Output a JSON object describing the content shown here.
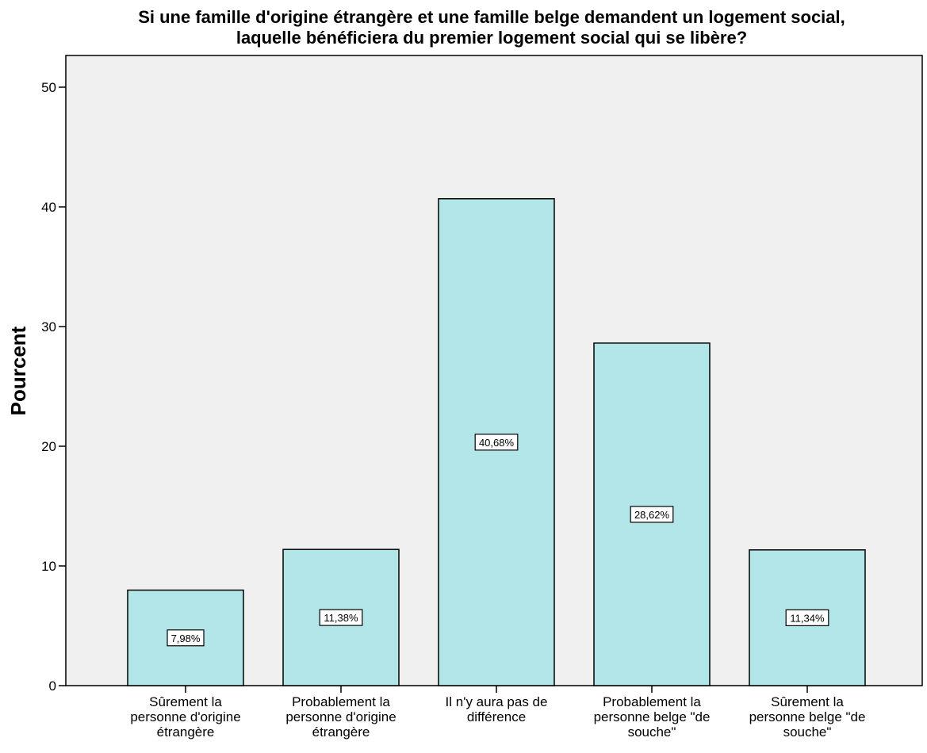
{
  "chart_data": {
    "type": "bar",
    "title": [
      "Si une famille d'origine étrangère et une famille belge demandent un logement social,",
      "laquelle bénéficiera du premier logement social qui se libère?"
    ],
    "ylabel": "Pourcent",
    "xlabel": "",
    "ylim": [
      0,
      52
    ],
    "yticks": [
      0,
      10,
      20,
      30,
      40,
      50
    ],
    "grid": false,
    "categories": [
      [
        "Sûrement la",
        "personne d'origine",
        "étrangère"
      ],
      [
        "Probablement la",
        "personne d'origine",
        "étrangère"
      ],
      [
        "Il n'y aura pas de",
        "différence"
      ],
      [
        "Probablement la",
        "personne belge \"de",
        "souche\""
      ],
      [
        "Sûrement la",
        "personne belge \"de",
        "souche\""
      ]
    ],
    "values": [
      7.98,
      11.38,
      40.68,
      28.62,
      11.34
    ],
    "data_labels": [
      "7,98%",
      "11,38%",
      "40,68%",
      "28,62%",
      "11,34%"
    ],
    "colors": {
      "bar": "#b3e6e8",
      "plot_background": "#f0f0f0",
      "bar_stroke": "#000000"
    }
  }
}
